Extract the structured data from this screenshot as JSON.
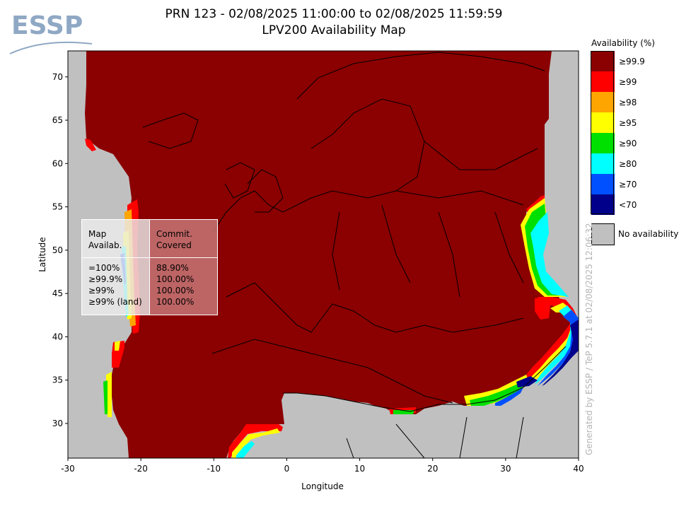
{
  "logo": {
    "text": "ESSP"
  },
  "title": {
    "line1": "PRN 123 - 02/08/2025 11:00:00 to 02/08/2025 11:59:59",
    "line2": "LPV200 Availability Map"
  },
  "stats_box": {
    "header_left": "Map\nAvailab.",
    "header_right": "Commit.\nCovered",
    "rows_left": "=100%\n≥99.9%\n≥99%\n≥99% (land)",
    "rows_right": "88.90%\n100.00%\n100.00%\n100.00%"
  },
  "legend": {
    "title": "Availability (%)",
    "items": [
      {
        "label": "≥99.9",
        "color": "#8b0000"
      },
      {
        "label": "≥99",
        "color": "#ff0000"
      },
      {
        "label": "≥98",
        "color": "#ffa500"
      },
      {
        "label": "≥95",
        "color": "#ffff00"
      },
      {
        "label": "≥90",
        "color": "#00e000"
      },
      {
        "label": "≥80",
        "color": "#00ffff"
      },
      {
        "label": "≥70",
        "color": "#0050ff"
      },
      {
        "label": "<70",
        "color": "#00008b"
      }
    ],
    "no_availability_label": "No availability",
    "no_availability_color": "#c0c0c0"
  },
  "generated_by": "Generated by ESSP / TeP 5.7.1 at 02/08/2025 12:06:32",
  "chart_data": {
    "type": "heatmap",
    "xlabel": "Longitude",
    "ylabel": "Latitude",
    "xlim": [
      -30,
      40
    ],
    "ylim": [
      26,
      73
    ],
    "xticks": [
      -30,
      -20,
      -10,
      0,
      10,
      20,
      30,
      40
    ],
    "yticks": [
      30,
      35,
      40,
      45,
      50,
      55,
      60,
      65,
      70
    ],
    "colors": {
      "background": "#c0c0c0",
      "full": "#8b0000",
      "ge99": "#ff0000",
      "ge98": "#ffa500",
      "ge95": "#ffff00",
      "ge90": "#00e000",
      "ge80": "#00ffff",
      "ge70": "#0050ff",
      "lt70": "#00008b"
    }
  }
}
